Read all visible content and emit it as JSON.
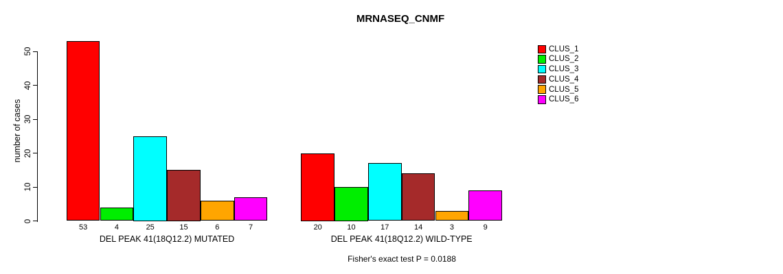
{
  "chart_data": {
    "type": "bar",
    "title": "MRNASEQ_CNMF",
    "ylabel": "number of cases",
    "xlabel": "",
    "yticks": [
      0,
      10,
      20,
      30,
      40,
      50
    ],
    "ylim": [
      0,
      53
    ],
    "grid": false,
    "legend_position": "right",
    "categories": [
      "DEL PEAK 41(18Q12.2) MUTATED",
      "DEL PEAK 41(18Q12.2) WILD-TYPE"
    ],
    "series": [
      {
        "name": "CLUS_1",
        "color": "#FF0000",
        "values": [
          53,
          20
        ]
      },
      {
        "name": "CLUS_2",
        "color": "#00EE00",
        "values": [
          4,
          10
        ]
      },
      {
        "name": "CLUS_3",
        "color": "#00FFFF",
        "values": [
          25,
          17
        ]
      },
      {
        "name": "CLUS_4",
        "color": "#A52A2A",
        "values": [
          15,
          14
        ]
      },
      {
        "name": "CLUS_5",
        "color": "#FFA500",
        "values": [
          6,
          3
        ]
      },
      {
        "name": "CLUS_6",
        "color": "#FF00FF",
        "values": [
          7,
          9
        ]
      }
    ],
    "bar_value_labels_shown": true,
    "annotation": "Fisher's exact test P = 0.0188",
    "axis_color": "#000000",
    "background_color": "#FFFFFF"
  }
}
